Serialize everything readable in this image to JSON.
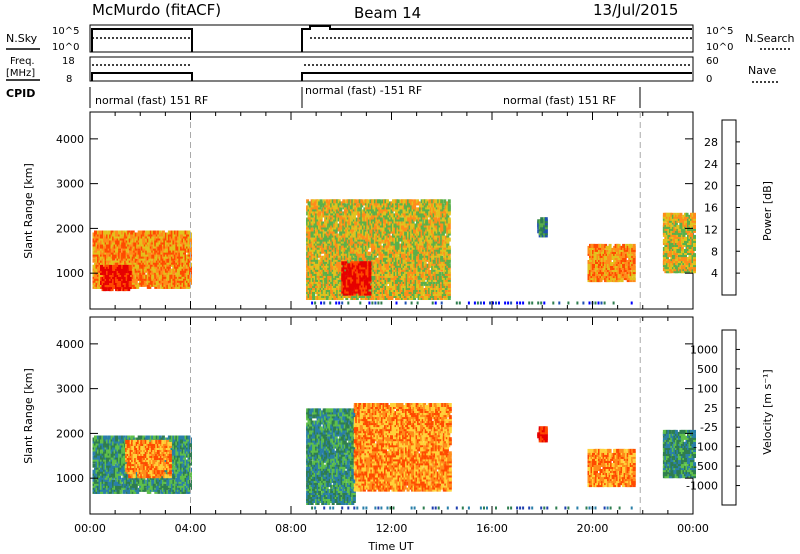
{
  "header": {
    "station": "McMurdo (fitACF)",
    "beam": "Beam 14",
    "date": "13/Jul/2015"
  },
  "top_panels": {
    "nsky_label": "N.Sky",
    "nsky_ticks": [
      "10^5",
      "10^0"
    ],
    "nsearch_label": "N.Search",
    "nsearch_ticks": [
      "10^5",
      "10^0"
    ],
    "freq_label_line1": "Freq.",
    "freq_label_line2": "[MHz]",
    "freq_ticks": [
      "18",
      "8"
    ],
    "nave_label": "Nave",
    "nave_ticks": [
      "60",
      "0"
    ],
    "cpid_label": "CPID",
    "cpid_segments": [
      {
        "label": "normal (fast) 151 RF",
        "start_h": 0.0
      },
      {
        "label": "normal (fast) -151 RF",
        "start_h": 8.7
      },
      {
        "label": "normal (fast) 151 RF",
        "start_h": 17.5
      }
    ]
  },
  "chart_data": [
    {
      "type": "heatmap",
      "name": "power",
      "xlabel": "",
      "ylabel": "Slant Range [km]",
      "xlim": [
        0,
        24
      ],
      "ylim": [
        200,
        4600
      ],
      "ytick_labels": [
        "1000",
        "2000",
        "3000",
        "4000"
      ],
      "ytick_values": [
        1000,
        2000,
        3000,
        4000
      ],
      "colorbar_label": "Power [dB]",
      "colorbar_ticks": [
        "4",
        "8",
        "12",
        "16",
        "20",
        "24",
        "28"
      ],
      "colorbar_colors": [
        "#0000ff",
        "#1f4fb3",
        "#2e7d4f",
        "#5ab04a",
        "#e2c21d",
        "#ff8c1a",
        "#ff4a00",
        "#e60000"
      ],
      "data_gaps_hours": [
        [
          4.0,
          8.7
        ],
        [
          21.9,
          22.2
        ]
      ],
      "echo_regions": [
        {
          "t0": 0.1,
          "t1": 4.0,
          "r0": 650,
          "r1": 1900,
          "level": 5
        },
        {
          "t0": 0.4,
          "t1": 1.6,
          "r0": 600,
          "r1": 1100,
          "level": 7
        },
        {
          "t0": 8.6,
          "t1": 14.3,
          "r0": 400,
          "r1": 2600,
          "level": 4
        },
        {
          "t0": 10.0,
          "t1": 11.1,
          "r0": 500,
          "r1": 1200,
          "level": 7
        },
        {
          "t0": 17.8,
          "t1": 18.1,
          "r0": 1800,
          "r1": 2200,
          "level": 2
        },
        {
          "t0": 19.8,
          "t1": 21.6,
          "r0": 800,
          "r1": 1600,
          "level": 5
        },
        {
          "t0": 22.8,
          "t1": 24.0,
          "r0": 1000,
          "r1": 2300,
          "level": 4
        }
      ]
    },
    {
      "type": "heatmap",
      "name": "velocity",
      "xlabel": "Time UT",
      "ylabel": "Slant Range [km]",
      "xlim": [
        0,
        24
      ],
      "ylim": [
        200,
        4600
      ],
      "xtick_labels": [
        "00:00",
        "04:00",
        "08:00",
        "12:00",
        "16:00",
        "20:00",
        "00:00"
      ],
      "xtick_values": [
        0,
        4,
        8,
        12,
        16,
        20,
        24
      ],
      "ytick_labels": [
        "1000",
        "2000",
        "3000",
        "4000"
      ],
      "ytick_values": [
        1000,
        2000,
        3000,
        4000
      ],
      "colorbar_label": "Velocity [m s⁻¹]",
      "colorbar_ticks": [
        "1000",
        "500",
        "100",
        "25",
        "-25",
        "-100",
        "-500",
        "-1000"
      ],
      "colorbar_colors": [
        "#1f3fae",
        "#2a7fa8",
        "#2e7d4f",
        "#5fc04a",
        "#b8b8b8",
        "#ffd23a",
        "#ff8c1a",
        "#ff4a00",
        "#e60000"
      ],
      "data_gaps_hours": [
        [
          4.0,
          8.7
        ],
        [
          21.9,
          22.2
        ]
      ],
      "echo_regions": [
        {
          "t0": 0.1,
          "t1": 4.0,
          "r0": 650,
          "r1": 1900,
          "level": 2
        },
        {
          "t0": 1.4,
          "t1": 3.2,
          "r0": 1000,
          "r1": 1800,
          "level": 6
        },
        {
          "t0": 8.6,
          "t1": 10.5,
          "r0": 400,
          "r1": 2500,
          "level": 2
        },
        {
          "t0": 10.5,
          "t1": 14.3,
          "r0": 700,
          "r1": 2600,
          "level": 6
        },
        {
          "t0": 17.8,
          "t1": 18.1,
          "r0": 1800,
          "r1": 2100,
          "level": 8
        },
        {
          "t0": 19.8,
          "t1": 21.6,
          "r0": 800,
          "r1": 1600,
          "level": 6
        },
        {
          "t0": 22.8,
          "t1": 24.0,
          "r0": 1000,
          "r1": 2000,
          "level": 2
        }
      ]
    }
  ]
}
